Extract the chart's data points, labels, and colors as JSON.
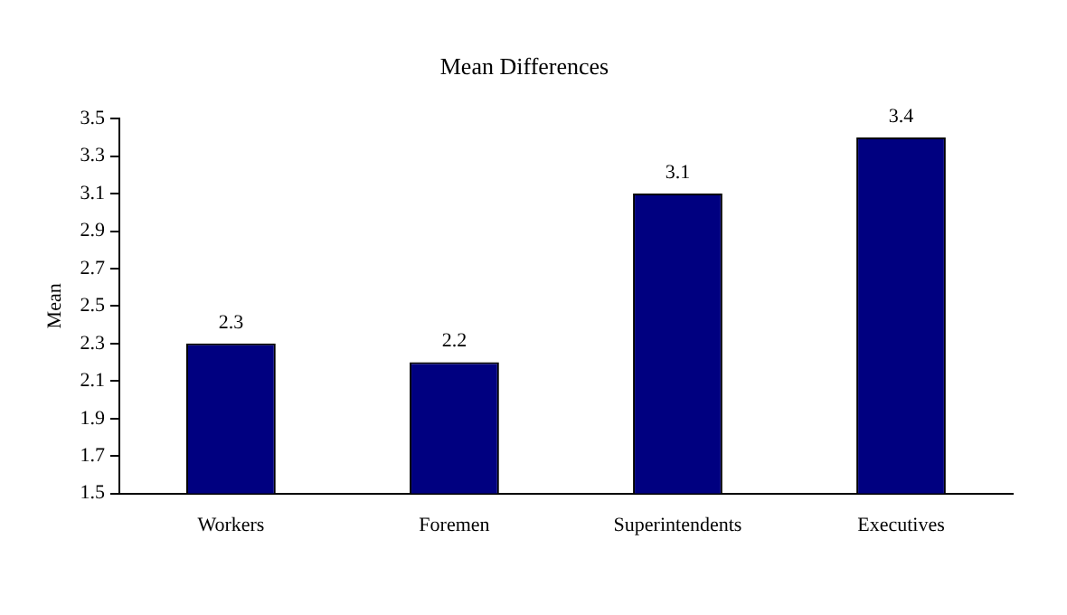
{
  "chart_data": {
    "type": "bar",
    "title": "Mean Differences",
    "ylabel": "Mean",
    "categories": [
      "Workers",
      "Foremen",
      "Superintendents",
      "Executives"
    ],
    "values": [
      2.3,
      2.2,
      3.1,
      3.4
    ],
    "color": "#000080",
    "ylim": [
      1.5,
      3.5
    ],
    "yticks": [
      1.5,
      1.7,
      1.9,
      2.1,
      2.3,
      2.5,
      2.7,
      2.9,
      3.1,
      3.3,
      3.5
    ],
    "grid": false,
    "legend": false,
    "data_labels": true
  }
}
